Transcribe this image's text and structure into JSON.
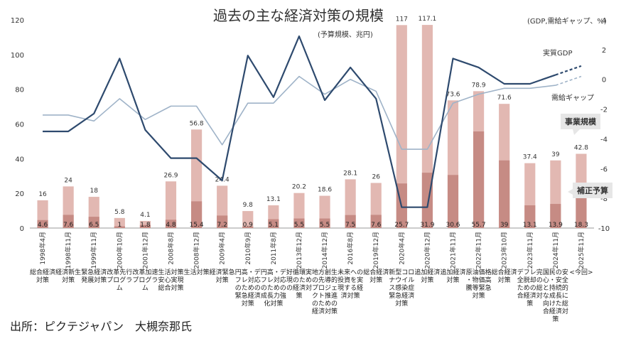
{
  "title": "過去の主な経済対策の規模",
  "subtitle": "(予算規模、兆円)",
  "right_unit": "(GDP,需給ギャップ、%)",
  "source": "出所：ピクテジャパン　大槻奈那氏",
  "colors": {
    "bar_total": "#e2b8b2",
    "bar_supplement": "#c68b84",
    "line_gdp": "#2e4a6e",
    "line_gap": "#9fb3c8",
    "callout": "#e6e6e6"
  },
  "chart_data": {
    "type": "bar+line",
    "title": "過去の主な経済対策の規模",
    "left_axis": {
      "label": "予算規模、兆円",
      "ylim": [
        0,
        120
      ],
      "ticks": [
        0,
        20,
        40,
        60,
        80,
        100,
        120
      ]
    },
    "right_axis": {
      "label": "GDP,需給ギャップ、%",
      "ylim": [
        -10,
        4
      ],
      "ticks": [
        -10,
        -8,
        -6,
        -4,
        -2,
        0,
        2,
        4
      ]
    },
    "categories": [
      "1998年4月",
      "1998年11月",
      "1999年11月",
      "2000年10月",
      "2001年12月",
      "2008年8月",
      "2008年12月",
      "2009年4月",
      "2010年9月",
      "2011年8月",
      "2013年12月",
      "2014年12月",
      "2016年8月",
      "2019年12月",
      "2020年4月",
      "2020年12月",
      "2021年11月",
      "2022年11月",
      "2023年10月",
      "2023年11月",
      "2024年11月",
      "2025年11月"
    ],
    "policy_names": [
      "総合経済対策",
      "経済新生対策",
      "緊急経済発展対策",
      "改革先行プログラム",
      "改革加速プログラム",
      "生活対策安心実現総合対策",
      "生活対策",
      "経済緊急対策",
      "円高・デフレ対応のための緊急経済対策",
      "円高・デフレ対応のための成長力強化対策",
      "好循環実現のための経済対策",
      "地方創生の先導的プロジェクト推進のための経済対策",
      "未来への投資を実現する経済対策",
      "総合経済対策",
      "新型コロナウイルス感染症緊急経済対策",
      "追加経済対策",
      "追加経済対策",
      "原油価格・物価高騰等緊急対策",
      "総合経済対策",
      "デフレ完全脱却のための総合経済対策",
      "国民の安心・安全と持続的な成長に向けた総合経済対策",
      "<今回>"
    ],
    "series": [
      {
        "name": "事業規模",
        "type": "bar",
        "values": [
          16,
          24,
          18,
          5.8,
          4.1,
          26.9,
          56.8,
          24.4,
          9.8,
          13.1,
          20.2,
          18.6,
          28.1,
          26,
          117,
          117.1,
          73.6,
          78.9,
          71.6,
          37.4,
          39,
          42.8
        ],
        "labels": [
          "16",
          "24",
          "18",
          "5.8",
          "4.1",
          "26.9",
          "56.8",
          "24.4",
          "9.8",
          "13.1",
          "20.2",
          "18.6",
          "28.1",
          "26",
          "117",
          "117.1",
          "73.6",
          "78.9",
          "71.6",
          "37.4",
          "39",
          "42.8"
        ]
      },
      {
        "name": "補正予算",
        "type": "bar",
        "values": [
          4.6,
          7.6,
          6.5,
          1,
          1.8,
          4.8,
          15.4,
          7.2,
          0.9,
          5.1,
          5.5,
          5.5,
          7.5,
          7.6,
          25.7,
          31.9,
          30.6,
          55.7,
          39,
          13.1,
          13.9,
          18.3
        ],
        "labels": [
          "4.6",
          "7.6",
          "6.5",
          "1",
          "1.8",
          "4.8",
          "15.4",
          "7.2",
          "0.9",
          "5.1",
          "5.5",
          "5.5",
          "7.5",
          "7.6",
          "25.7",
          "31.9",
          "30.6",
          "55.7",
          "39",
          "13.1",
          "13.9",
          "18.3"
        ]
      },
      {
        "name": "実質GDP",
        "type": "line",
        "axis": "right",
        "values": [
          -3.5,
          -3.5,
          -2.3,
          1.4,
          -3.4,
          -5.3,
          -5.3,
          -6.8,
          1.6,
          -1.2,
          2.9,
          -1.4,
          0.8,
          -1.3,
          -8.6,
          -8.6,
          1.4,
          0.8,
          -0.3,
          -0.3,
          0.3,
          0.9
        ],
        "projected_from_index": 20
      },
      {
        "name": "需給ギャップ",
        "type": "line",
        "axis": "right",
        "values": [
          -2.4,
          -2.4,
          -2.8,
          -1.3,
          -2.7,
          -1.8,
          -1.8,
          -4.4,
          -1.6,
          -1.6,
          0.2,
          -1.0,
          0.0,
          -0.8,
          -4.7,
          -4.7,
          -1.6,
          -1.0,
          -0.6,
          -0.6,
          -0.4,
          0.2
        ],
        "projected_from_index": 20
      }
    ],
    "annotations": [
      {
        "text": "実質GDP",
        "series": "実質GDP"
      },
      {
        "text": "需給ギャップ",
        "series": "需給ギャップ"
      },
      {
        "text": "事業規模",
        "style": "callout"
      },
      {
        "text": "補正予算",
        "style": "callout"
      }
    ]
  }
}
